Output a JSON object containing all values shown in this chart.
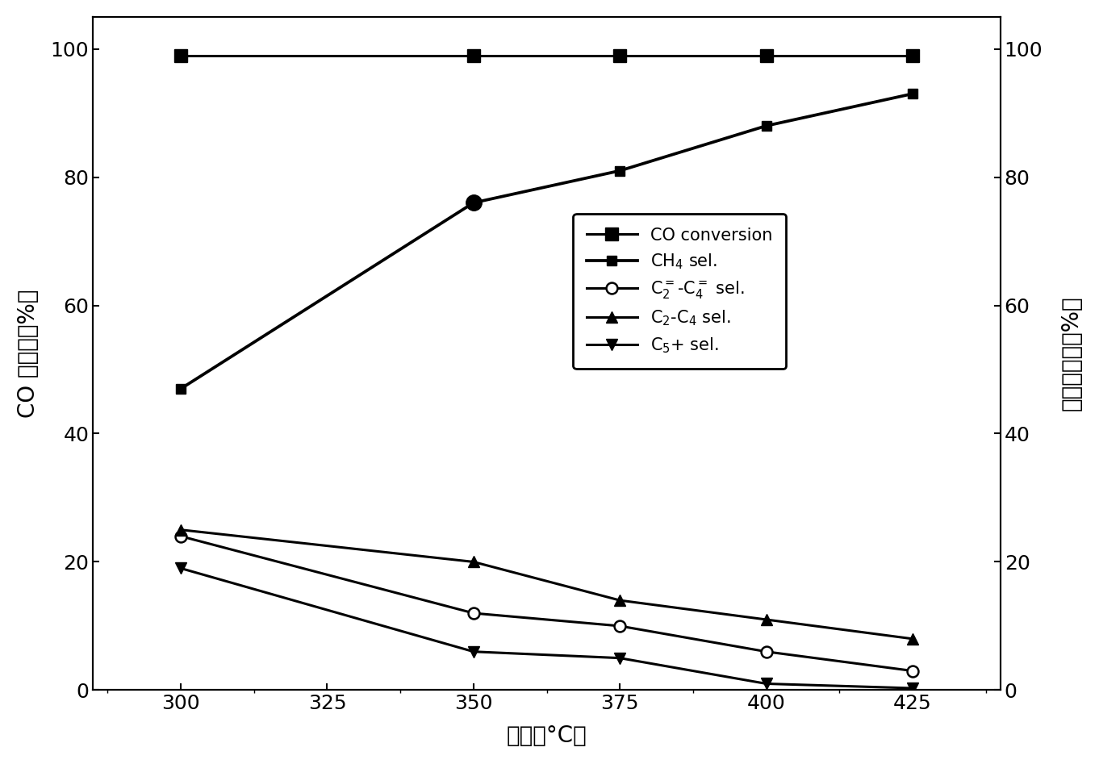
{
  "x": [
    300,
    350,
    375,
    400,
    425
  ],
  "CO_conversion": [
    99,
    99,
    99,
    99,
    99
  ],
  "CH4_sel": [
    47,
    76,
    81,
    88,
    93
  ],
  "CH4_dot_x": [
    350
  ],
  "CH4_dot_y": [
    76
  ],
  "C2_C4_olefin_sel": [
    24,
    12,
    10,
    6,
    3
  ],
  "C2_C4_paraffin_sel": [
    25,
    20,
    14,
    11,
    8
  ],
  "C5plus_sel": [
    19,
    6,
    5,
    1,
    0.3
  ],
  "xlabel": "温度（°C）",
  "ylabel_left": "CO 转化率（%）",
  "ylabel_right": "产物选择性（%）",
  "legend_CO": "CO conversion",
  "legend_CH4": "CH$_4$ sel.",
  "legend_C2C4ol": "C$_2^=$-C$_4^=$ sel.",
  "legend_C2C4pa": "C$_2$-C$_4$ sel.",
  "legend_C5": "C$_5$+ sel.",
  "xlim": [
    285,
    440
  ],
  "ylim": [
    0,
    105
  ],
  "xticks": [
    300,
    325,
    350,
    375,
    400,
    425
  ],
  "yticks": [
    0,
    20,
    40,
    60,
    80,
    100
  ],
  "background_color": "#ffffff"
}
